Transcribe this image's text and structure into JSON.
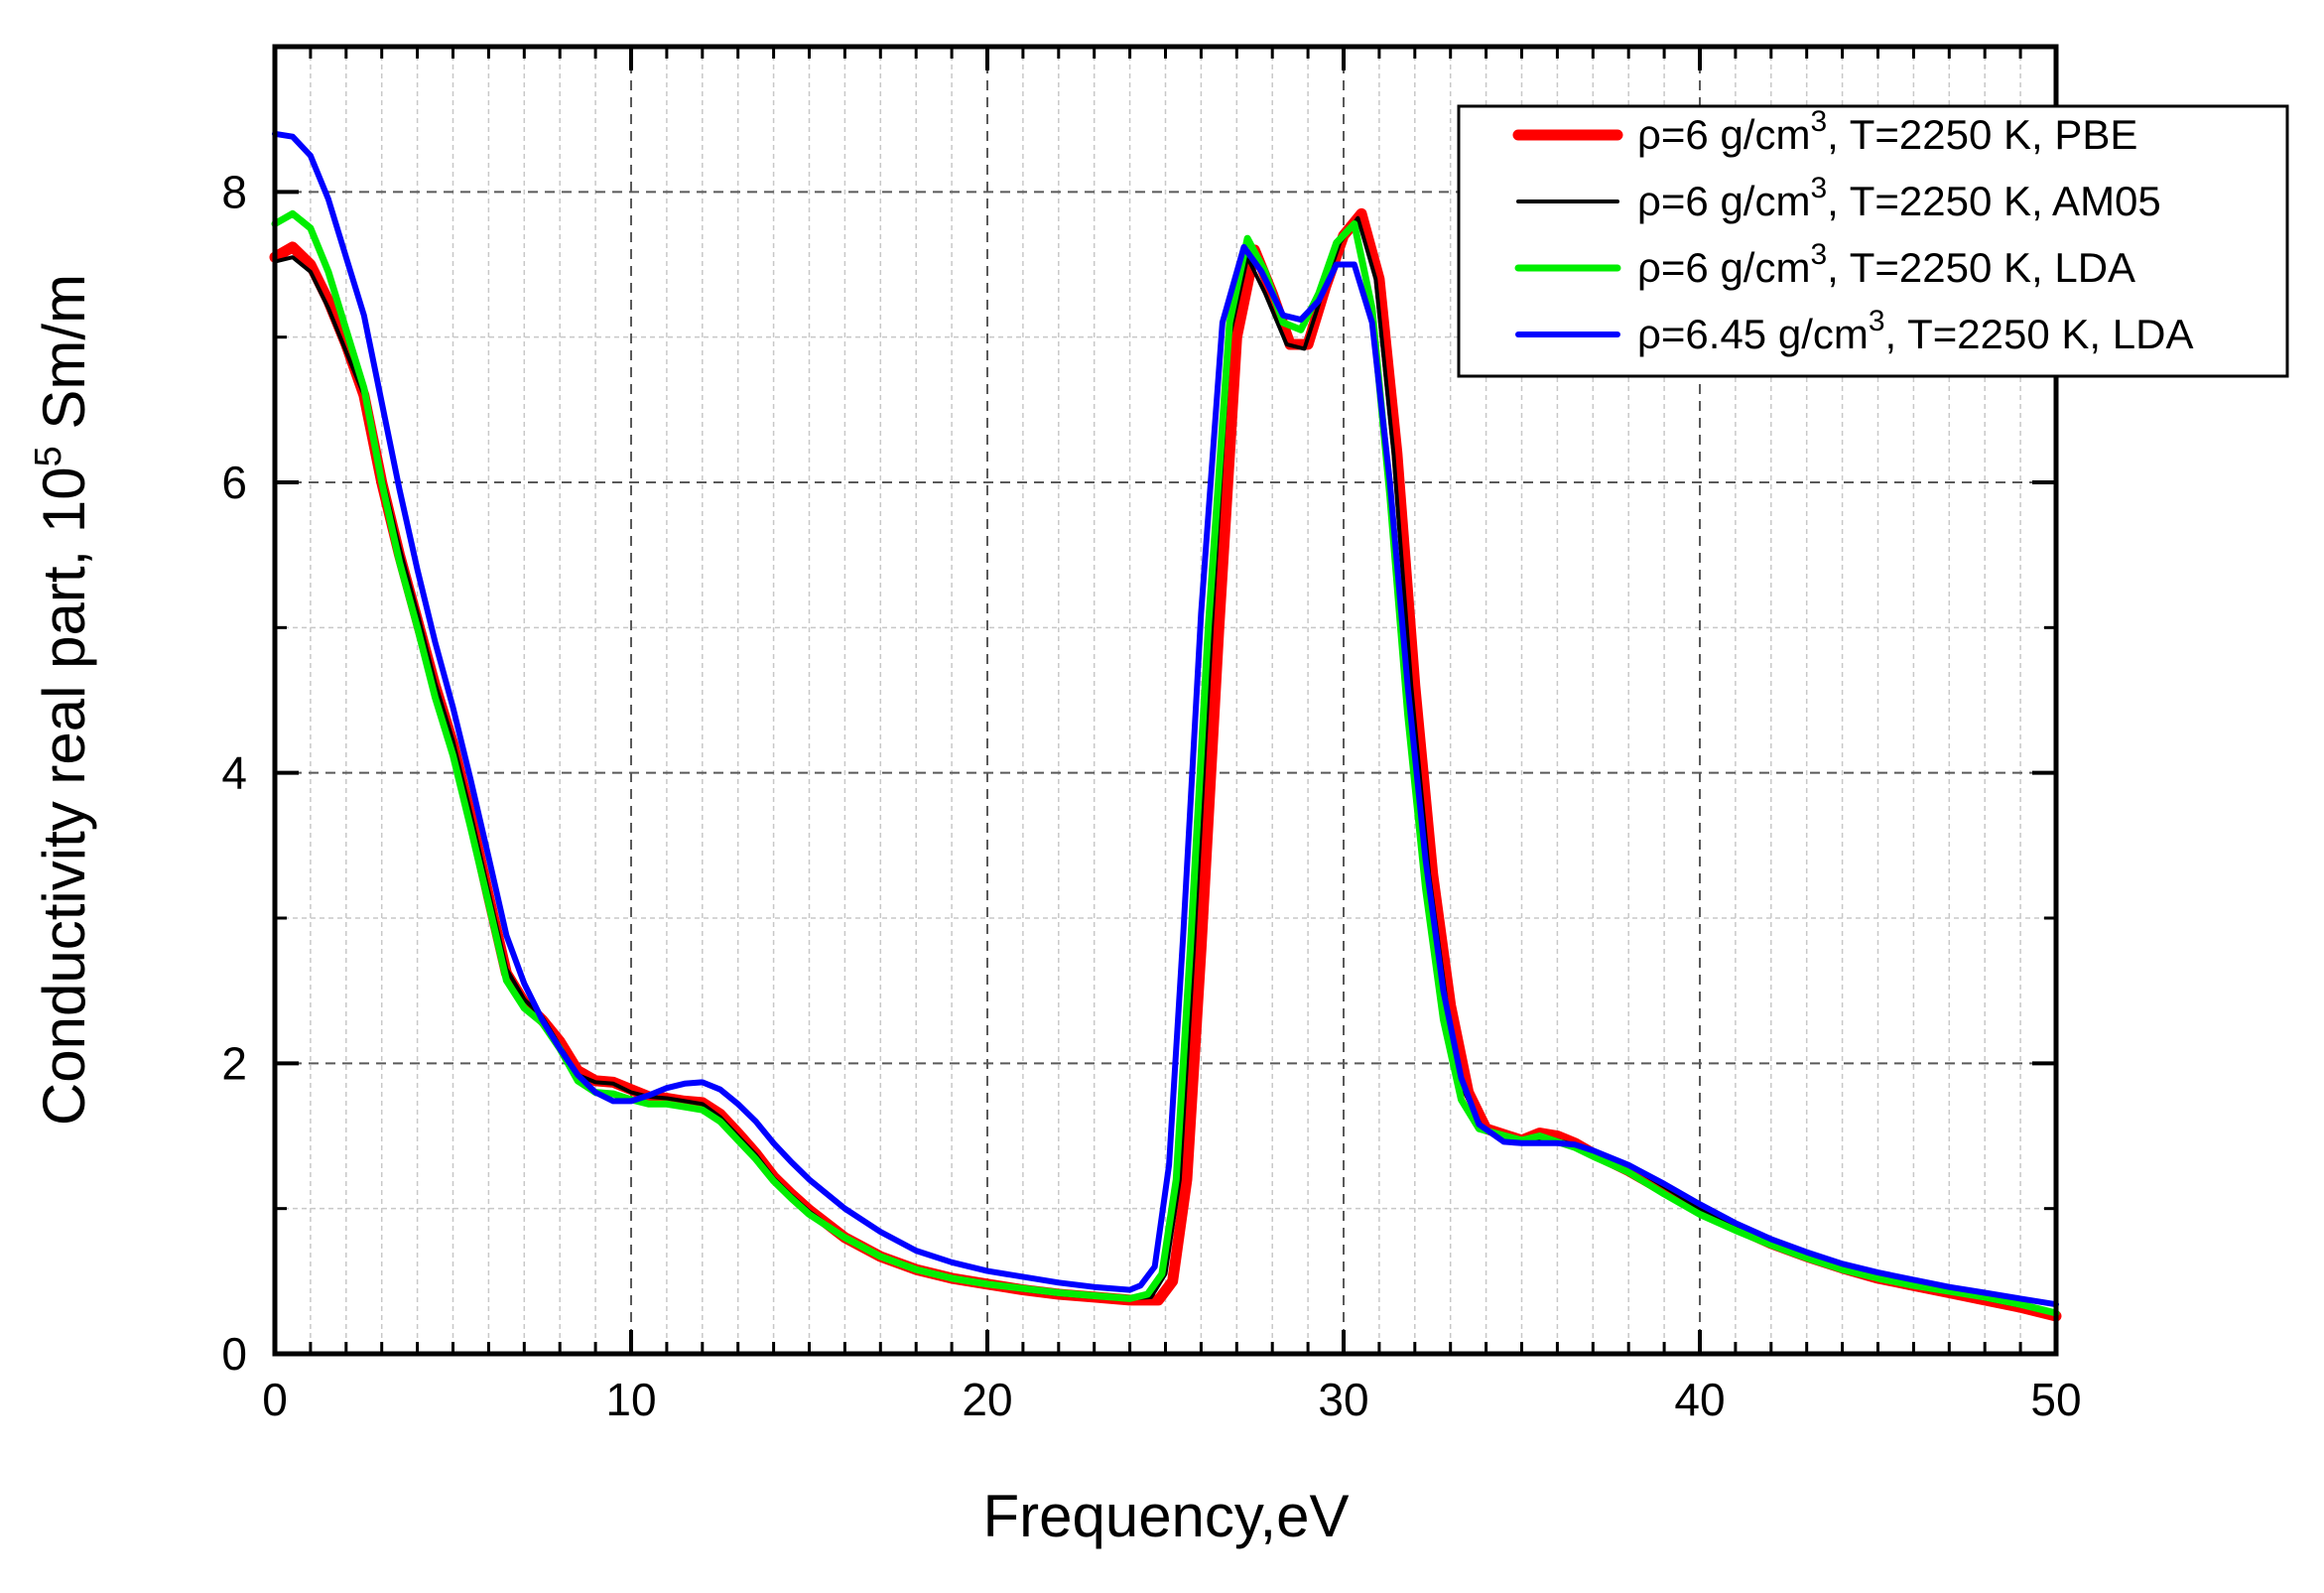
{
  "chart_data": {
    "type": "line",
    "title": "",
    "xlabel": "Frequency,eV",
    "ylabel_main": "Conductivity real part,  10",
    "ylabel_exp": "5",
    "ylabel_unit": " Sm/m",
    "xlim": [
      0,
      50
    ],
    "ylim": [
      0,
      9
    ],
    "x_ticks": [
      0,
      10,
      20,
      30,
      40,
      50
    ],
    "x_tick_labels": [
      "0",
      "10",
      "20",
      "30",
      "40",
      "50"
    ],
    "y_ticks": [
      0,
      2,
      4,
      6,
      8
    ],
    "y_tick_labels": [
      "0",
      "2",
      "4",
      "6",
      "8"
    ],
    "grid": true,
    "legend_position": "top-right",
    "series": [
      {
        "name": "PBE",
        "legend_main": "ρ=6 g/cm",
        "legend_sup": "3",
        "legend_rest": ", T=2250 K, PBE",
        "color": "#ff0000",
        "width": 11,
        "points": [
          [
            0,
            7.55
          ],
          [
            0.5,
            7.62
          ],
          [
            1,
            7.5
          ],
          [
            1.5,
            7.25
          ],
          [
            2,
            6.95
          ],
          [
            2.5,
            6.6
          ],
          [
            3,
            6.0
          ],
          [
            3.5,
            5.5
          ],
          [
            4,
            5.05
          ],
          [
            4.5,
            4.6
          ],
          [
            5,
            4.2
          ],
          [
            5.5,
            3.7
          ],
          [
            6,
            3.15
          ],
          [
            6.5,
            2.62
          ],
          [
            7,
            2.42
          ],
          [
            7.5,
            2.3
          ],
          [
            8,
            2.15
          ],
          [
            8.5,
            1.95
          ],
          [
            9,
            1.88
          ],
          [
            9.5,
            1.87
          ],
          [
            10,
            1.82
          ],
          [
            10.5,
            1.77
          ],
          [
            11,
            1.76
          ],
          [
            11.5,
            1.74
          ],
          [
            12,
            1.73
          ],
          [
            12.5,
            1.65
          ],
          [
            13,
            1.52
          ],
          [
            13.5,
            1.38
          ],
          [
            14,
            1.22
          ],
          [
            14.5,
            1.1
          ],
          [
            15,
            0.99
          ],
          [
            16,
            0.8
          ],
          [
            17,
            0.67
          ],
          [
            18,
            0.58
          ],
          [
            19,
            0.52
          ],
          [
            20,
            0.48
          ],
          [
            21,
            0.44
          ],
          [
            22,
            0.41
          ],
          [
            23,
            0.39
          ],
          [
            24,
            0.37
          ],
          [
            24.8,
            0.37
          ],
          [
            25.2,
            0.5
          ],
          [
            25.6,
            1.2
          ],
          [
            26,
            2.8
          ],
          [
            26.5,
            5.0
          ],
          [
            27,
            7.0
          ],
          [
            27.5,
            7.6
          ],
          [
            28,
            7.3
          ],
          [
            28.5,
            6.95
          ],
          [
            29,
            6.95
          ],
          [
            29.5,
            7.35
          ],
          [
            30,
            7.7
          ],
          [
            30.5,
            7.85
          ],
          [
            31,
            7.4
          ],
          [
            31.5,
            6.2
          ],
          [
            32,
            4.6
          ],
          [
            32.5,
            3.3
          ],
          [
            33,
            2.4
          ],
          [
            33.5,
            1.8
          ],
          [
            34,
            1.55
          ],
          [
            35,
            1.47
          ],
          [
            35.5,
            1.52
          ],
          [
            36,
            1.5
          ],
          [
            36.5,
            1.45
          ],
          [
            37,
            1.38
          ],
          [
            38,
            1.26
          ],
          [
            39,
            1.12
          ],
          [
            40,
            0.98
          ],
          [
            41,
            0.87
          ],
          [
            42,
            0.76
          ],
          [
            43,
            0.67
          ],
          [
            44,
            0.59
          ],
          [
            45,
            0.52
          ],
          [
            46,
            0.47
          ],
          [
            47,
            0.42
          ],
          [
            48,
            0.37
          ],
          [
            49,
            0.32
          ],
          [
            50,
            0.26
          ]
        ]
      },
      {
        "name": "AM05",
        "legend_main": "ρ=6 g/cm",
        "legend_sup": "3",
        "legend_rest": ", T=2250 K, AM05",
        "color": "#000000",
        "width": 4,
        "points": [
          [
            0,
            7.52
          ],
          [
            0.5,
            7.55
          ],
          [
            1,
            7.45
          ],
          [
            1.5,
            7.2
          ],
          [
            2,
            6.9
          ],
          [
            2.5,
            6.6
          ],
          [
            3,
            6.05
          ],
          [
            3.5,
            5.55
          ],
          [
            4,
            5.1
          ],
          [
            4.5,
            4.62
          ],
          [
            5,
            4.22
          ],
          [
            5.5,
            3.72
          ],
          [
            6,
            3.18
          ],
          [
            6.5,
            2.65
          ],
          [
            7,
            2.44
          ],
          [
            7.5,
            2.32
          ],
          [
            8,
            2.12
          ],
          [
            8.5,
            1.92
          ],
          [
            9,
            1.87
          ],
          [
            9.5,
            1.86
          ],
          [
            10,
            1.8
          ],
          [
            10.5,
            1.77
          ],
          [
            11,
            1.76
          ],
          [
            11.5,
            1.74
          ],
          [
            12,
            1.72
          ],
          [
            12.5,
            1.63
          ],
          [
            13,
            1.5
          ],
          [
            13.5,
            1.37
          ],
          [
            14,
            1.21
          ],
          [
            14.5,
            1.09
          ],
          [
            15,
            0.98
          ],
          [
            16,
            0.8
          ],
          [
            17,
            0.67
          ],
          [
            18,
            0.58
          ],
          [
            19,
            0.52
          ],
          [
            20,
            0.48
          ],
          [
            21,
            0.44
          ],
          [
            22,
            0.41
          ],
          [
            23,
            0.39
          ],
          [
            24,
            0.38
          ],
          [
            24.6,
            0.39
          ],
          [
            25,
            0.55
          ],
          [
            25.4,
            1.2
          ],
          [
            25.8,
            2.8
          ],
          [
            26.3,
            5.0
          ],
          [
            26.8,
            7.0
          ],
          [
            27.3,
            7.55
          ],
          [
            27.8,
            7.3
          ],
          [
            28.4,
            6.95
          ],
          [
            28.9,
            6.92
          ],
          [
            29.4,
            7.3
          ],
          [
            29.9,
            7.65
          ],
          [
            30.4,
            7.82
          ],
          [
            30.9,
            7.4
          ],
          [
            31.4,
            6.2
          ],
          [
            31.9,
            4.6
          ],
          [
            32.4,
            3.3
          ],
          [
            32.9,
            2.4
          ],
          [
            33.4,
            1.8
          ],
          [
            33.9,
            1.55
          ],
          [
            35,
            1.45
          ],
          [
            35.5,
            1.48
          ],
          [
            36,
            1.47
          ],
          [
            36.5,
            1.44
          ],
          [
            37,
            1.4
          ],
          [
            38,
            1.3
          ],
          [
            39,
            1.15
          ],
          [
            40,
            1.0
          ],
          [
            41,
            0.88
          ],
          [
            42,
            0.77
          ],
          [
            43,
            0.67
          ],
          [
            44,
            0.59
          ],
          [
            45,
            0.53
          ],
          [
            46,
            0.47
          ],
          [
            47,
            0.43
          ],
          [
            48,
            0.38
          ],
          [
            49,
            0.33
          ],
          [
            50,
            0.28
          ]
        ]
      },
      {
        "name": "LDA",
        "legend_main": "ρ=6 g/cm",
        "legend_sup": "3",
        "legend_rest": ", T=2250 K, LDA",
        "color": "#00ee00",
        "width": 7,
        "points": [
          [
            0,
            7.78
          ],
          [
            0.5,
            7.85
          ],
          [
            1,
            7.75
          ],
          [
            1.5,
            7.45
          ],
          [
            2,
            7.05
          ],
          [
            2.5,
            6.65
          ],
          [
            3,
            6.0
          ],
          [
            3.5,
            5.45
          ],
          [
            4,
            5.0
          ],
          [
            4.5,
            4.52
          ],
          [
            5,
            4.12
          ],
          [
            5.5,
            3.62
          ],
          [
            6,
            3.1
          ],
          [
            6.5,
            2.57
          ],
          [
            7,
            2.38
          ],
          [
            7.5,
            2.28
          ],
          [
            8,
            2.1
          ],
          [
            8.5,
            1.88
          ],
          [
            9,
            1.8
          ],
          [
            9.5,
            1.79
          ],
          [
            10,
            1.75
          ],
          [
            10.5,
            1.72
          ],
          [
            11,
            1.72
          ],
          [
            11.5,
            1.7
          ],
          [
            12,
            1.68
          ],
          [
            12.5,
            1.6
          ],
          [
            13,
            1.47
          ],
          [
            13.5,
            1.34
          ],
          [
            14,
            1.19
          ],
          [
            14.5,
            1.07
          ],
          [
            15,
            0.96
          ],
          [
            16,
            0.8
          ],
          [
            17,
            0.67
          ],
          [
            18,
            0.58
          ],
          [
            19,
            0.52
          ],
          [
            20,
            0.48
          ],
          [
            21,
            0.45
          ],
          [
            22,
            0.42
          ],
          [
            23,
            0.4
          ],
          [
            24,
            0.38
          ],
          [
            24.5,
            0.41
          ],
          [
            24.9,
            0.55
          ],
          [
            25.3,
            1.2
          ],
          [
            25.7,
            2.8
          ],
          [
            26.2,
            5.0
          ],
          [
            26.8,
            7.1
          ],
          [
            27.3,
            7.68
          ],
          [
            27.8,
            7.45
          ],
          [
            28.3,
            7.1
          ],
          [
            28.8,
            7.05
          ],
          [
            29.3,
            7.3
          ],
          [
            29.8,
            7.65
          ],
          [
            30.3,
            7.78
          ],
          [
            30.8,
            7.2
          ],
          [
            31.3,
            5.9
          ],
          [
            31.8,
            4.4
          ],
          [
            32.3,
            3.2
          ],
          [
            32.8,
            2.3
          ],
          [
            33.3,
            1.75
          ],
          [
            33.8,
            1.55
          ],
          [
            35,
            1.47
          ],
          [
            35.5,
            1.5
          ],
          [
            36,
            1.46
          ],
          [
            36.5,
            1.42
          ],
          [
            37,
            1.36
          ],
          [
            38,
            1.25
          ],
          [
            39,
            1.1
          ],
          [
            40,
            0.96
          ],
          [
            41,
            0.85
          ],
          [
            42,
            0.75
          ],
          [
            43,
            0.66
          ],
          [
            44,
            0.58
          ],
          [
            45,
            0.52
          ],
          [
            46,
            0.47
          ],
          [
            47,
            0.43
          ],
          [
            48,
            0.39
          ],
          [
            49,
            0.34
          ],
          [
            50,
            0.28
          ]
        ]
      },
      {
        "name": "LDA 6.45",
        "legend_main": "ρ=6.45 g/cm",
        "legend_sup": "3",
        "legend_rest": ", T=2250 K, LDA",
        "color": "#0000ff",
        "width": 6,
        "points": [
          [
            0,
            8.4
          ],
          [
            0.5,
            8.38
          ],
          [
            1,
            8.25
          ],
          [
            1.5,
            7.95
          ],
          [
            2,
            7.55
          ],
          [
            2.5,
            7.15
          ],
          [
            3,
            6.55
          ],
          [
            3.5,
            5.95
          ],
          [
            4,
            5.4
          ],
          [
            4.5,
            4.9
          ],
          [
            5,
            4.45
          ],
          [
            5.5,
            3.95
          ],
          [
            6,
            3.42
          ],
          [
            6.5,
            2.88
          ],
          [
            7,
            2.55
          ],
          [
            7.5,
            2.3
          ],
          [
            8,
            2.1
          ],
          [
            8.5,
            1.92
          ],
          [
            9,
            1.8
          ],
          [
            9.5,
            1.74
          ],
          [
            10,
            1.74
          ],
          [
            10.5,
            1.78
          ],
          [
            11,
            1.83
          ],
          [
            11.5,
            1.86
          ],
          [
            12,
            1.87
          ],
          [
            12.5,
            1.82
          ],
          [
            13,
            1.72
          ],
          [
            13.5,
            1.6
          ],
          [
            14,
            1.45
          ],
          [
            14.5,
            1.32
          ],
          [
            15,
            1.2
          ],
          [
            16,
            1.0
          ],
          [
            17,
            0.84
          ],
          [
            18,
            0.71
          ],
          [
            19,
            0.63
          ],
          [
            20,
            0.57
          ],
          [
            21,
            0.53
          ],
          [
            22,
            0.49
          ],
          [
            23,
            0.46
          ],
          [
            24,
            0.44
          ],
          [
            24.3,
            0.47
          ],
          [
            24.7,
            0.6
          ],
          [
            25.1,
            1.3
          ],
          [
            25.5,
            2.9
          ],
          [
            26,
            5.1
          ],
          [
            26.6,
            7.1
          ],
          [
            27.2,
            7.62
          ],
          [
            27.7,
            7.45
          ],
          [
            28.3,
            7.15
          ],
          [
            28.8,
            7.12
          ],
          [
            29.3,
            7.25
          ],
          [
            29.8,
            7.5
          ],
          [
            30.3,
            7.5
          ],
          [
            30.8,
            7.1
          ],
          [
            31.3,
            6.0
          ],
          [
            31.8,
            4.6
          ],
          [
            32.3,
            3.4
          ],
          [
            32.8,
            2.5
          ],
          [
            33.3,
            1.9
          ],
          [
            33.8,
            1.58
          ],
          [
            34.5,
            1.46
          ],
          [
            35,
            1.45
          ],
          [
            36,
            1.45
          ],
          [
            36.5,
            1.44
          ],
          [
            37,
            1.4
          ],
          [
            38,
            1.3
          ],
          [
            39,
            1.17
          ],
          [
            40,
            1.03
          ],
          [
            41,
            0.9
          ],
          [
            42,
            0.79
          ],
          [
            43,
            0.7
          ],
          [
            44,
            0.62
          ],
          [
            45,
            0.56
          ],
          [
            46,
            0.51
          ],
          [
            47,
            0.46
          ],
          [
            48,
            0.42
          ],
          [
            49,
            0.38
          ],
          [
            50,
            0.34
          ]
        ]
      }
    ]
  }
}
